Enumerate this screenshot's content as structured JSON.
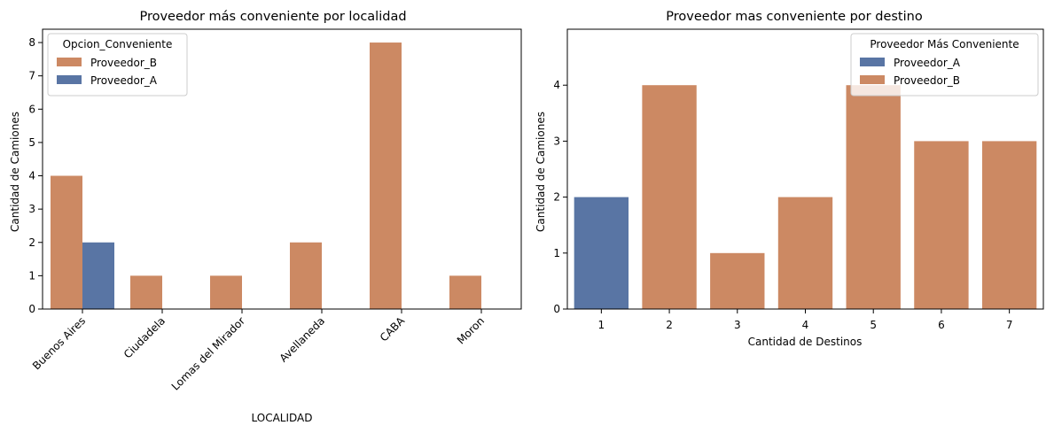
{
  "chart_data": [
    {
      "type": "bar",
      "title": "Proveedor más conveniente por localidad",
      "xlabel": "LOCALIDAD",
      "ylabel": "Cantidad de Camiones",
      "categories": [
        "Buenos Aires",
        "Ciudadela",
        "Lomas del Mirador",
        "Avellaneda",
        "CABA",
        "Moron"
      ],
      "ylim": [
        0,
        8.4
      ],
      "yticks": [
        0,
        1,
        2,
        3,
        4,
        5,
        6,
        7,
        8
      ],
      "grouped": true,
      "x_tick_rotation": 45,
      "legend": {
        "title": "Opcion_Conveniente",
        "placement": "top-left"
      },
      "series": [
        {
          "name": "Proveedor_B",
          "color": "#cc8963",
          "values": [
            4,
            1,
            1,
            2,
            8,
            1
          ]
        },
        {
          "name": "Proveedor_A",
          "color": "#5975a4",
          "values": [
            2,
            0,
            0,
            0,
            0,
            0
          ]
        }
      ],
      "grid": false
    },
    {
      "type": "bar",
      "title": "Proveedor mas conveniente por destino",
      "xlabel": "Cantidad de Destinos",
      "ylabel": "Cantidad de Camiones",
      "categories": [
        "1",
        "2",
        "3",
        "4",
        "5",
        "6",
        "7"
      ],
      "ylim": [
        0,
        5
      ],
      "yticks": [
        0,
        1,
        2,
        3,
        4
      ],
      "grouped": false,
      "legend": {
        "title": "Proveedor Más Conveniente",
        "placement": "top-right"
      },
      "series": [
        {
          "name": "Proveedor_A",
          "color": "#5975a4",
          "values": [
            2,
            0,
            0,
            0,
            0,
            0,
            0
          ]
        },
        {
          "name": "Proveedor_B",
          "color": "#cc8963",
          "values": [
            0,
            4,
            1,
            2,
            4,
            3,
            3
          ]
        }
      ],
      "grid": false
    }
  ]
}
